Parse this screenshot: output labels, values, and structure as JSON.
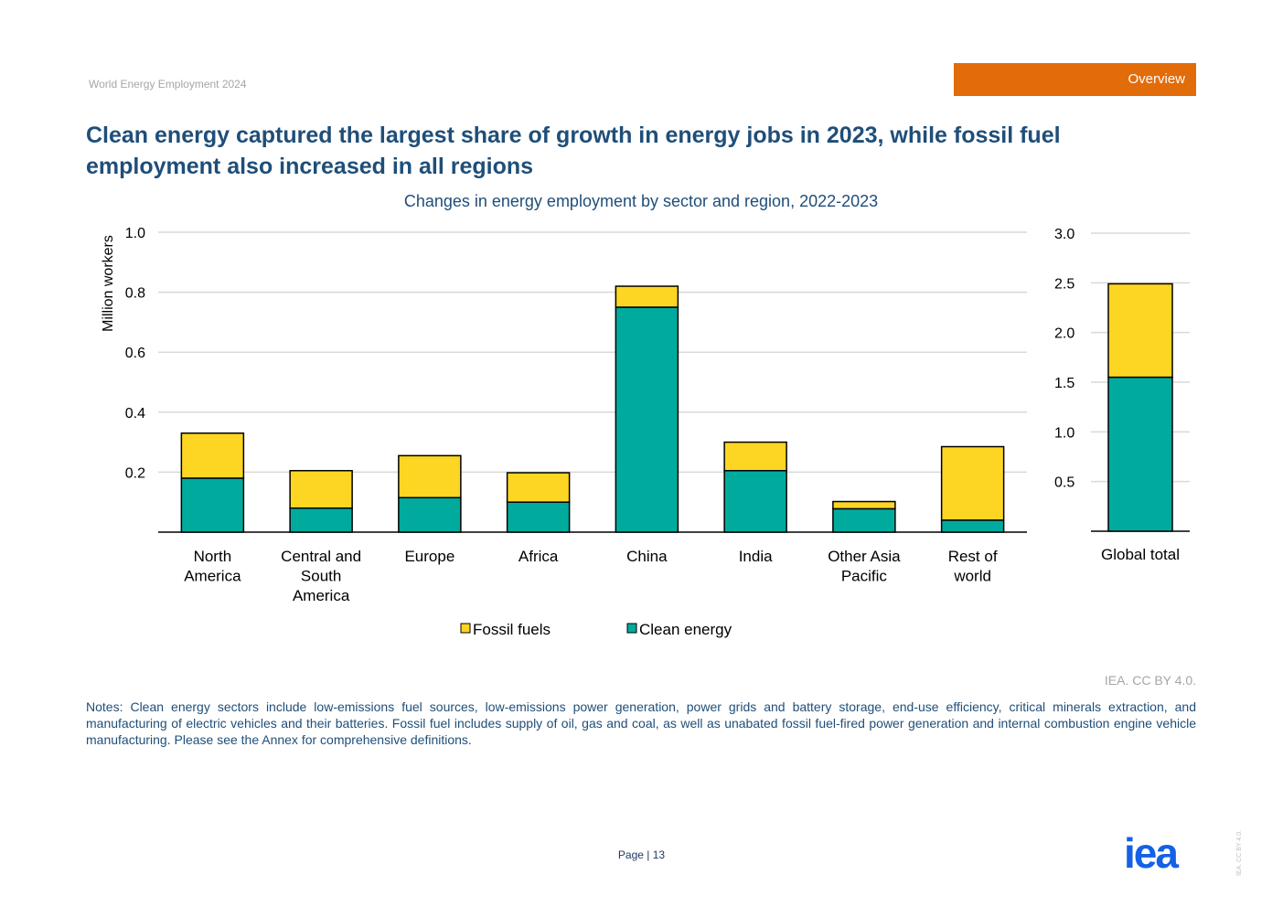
{
  "header": {
    "report_name": "World Energy Employment 2024",
    "section_tab": "Overview"
  },
  "title": "Clean energy captured the largest share of growth in energy jobs in 2023, while fossil fuel employment also increased in all regions",
  "colors": {
    "fossil": "#fdd523",
    "clean": "#00ab9e",
    "title": "#1f4e79",
    "grid": "#d9d9d9",
    "tab": "#e36c0a",
    "logo": "#1561e6"
  },
  "chart_data": [
    {
      "type": "bar",
      "stacked": true,
      "title": "Changes in energy employment by sector and region, 2022-2023",
      "ylabel": "Million workers",
      "ylim": [
        0,
        1.0
      ],
      "yticks": [
        0.2,
        0.4,
        0.6,
        0.8,
        1.0
      ],
      "ytick_labels": [
        "0.2",
        "0.4",
        "0.6",
        "0.8",
        "1.0"
      ],
      "grid": true,
      "categories": [
        "North America",
        "Central and South America",
        "Europe",
        "Africa",
        "China",
        "India",
        "Other Asia Pacific",
        "Rest of world"
      ],
      "category_lines": [
        [
          "North",
          "America"
        ],
        [
          "Central and",
          "South",
          "America"
        ],
        [
          "Europe"
        ],
        [
          "Africa"
        ],
        [
          "China"
        ],
        [
          "India"
        ],
        [
          "Other Asia",
          "Pacific"
        ],
        [
          "Rest of",
          "world"
        ]
      ],
      "series": [
        {
          "name": "Clean energy",
          "values": [
            0.18,
            0.08,
            0.115,
            0.1,
            0.75,
            0.205,
            0.078,
            0.04
          ]
        },
        {
          "name": "Fossil fuels",
          "values": [
            0.15,
            0.125,
            0.14,
            0.098,
            0.07,
            0.095,
            0.024,
            0.245
          ]
        }
      ],
      "legend": {
        "position": "bottom",
        "entries": [
          "Fossil fuels",
          "Clean energy"
        ]
      }
    },
    {
      "type": "bar",
      "stacked": true,
      "ylim": [
        0,
        3.0
      ],
      "yticks": [
        0.5,
        1.0,
        1.5,
        2.0,
        2.5,
        3.0
      ],
      "ytick_labels": [
        "0.5",
        "1.0",
        "1.5",
        "2.0",
        "2.5",
        "3.0"
      ],
      "grid": true,
      "categories": [
        "Global total"
      ],
      "category_lines": [
        [
          "Global total"
        ]
      ],
      "series": [
        {
          "name": "Clean energy",
          "values": [
            1.55
          ]
        },
        {
          "name": "Fossil fuels",
          "values": [
            0.94
          ]
        }
      ]
    }
  ],
  "source": "IEA. CC BY 4.0.",
  "notes": "Notes: Clean energy sectors include low-emissions fuel sources, low-emissions power generation, power grids and battery storage, end-use efficiency, critical minerals extraction, and manufacturing of electric vehicles and their batteries. Fossil fuel includes supply of oil, gas and coal, as well as unabated fossil fuel-fired power generation and internal combustion engine vehicle manufacturing. Please see the Annex for comprehensive definitions.",
  "footer": {
    "page_label": "Page",
    "page_number": "13",
    "logo_text": "iea",
    "side_license": "IEA. CC BY 4.0."
  }
}
